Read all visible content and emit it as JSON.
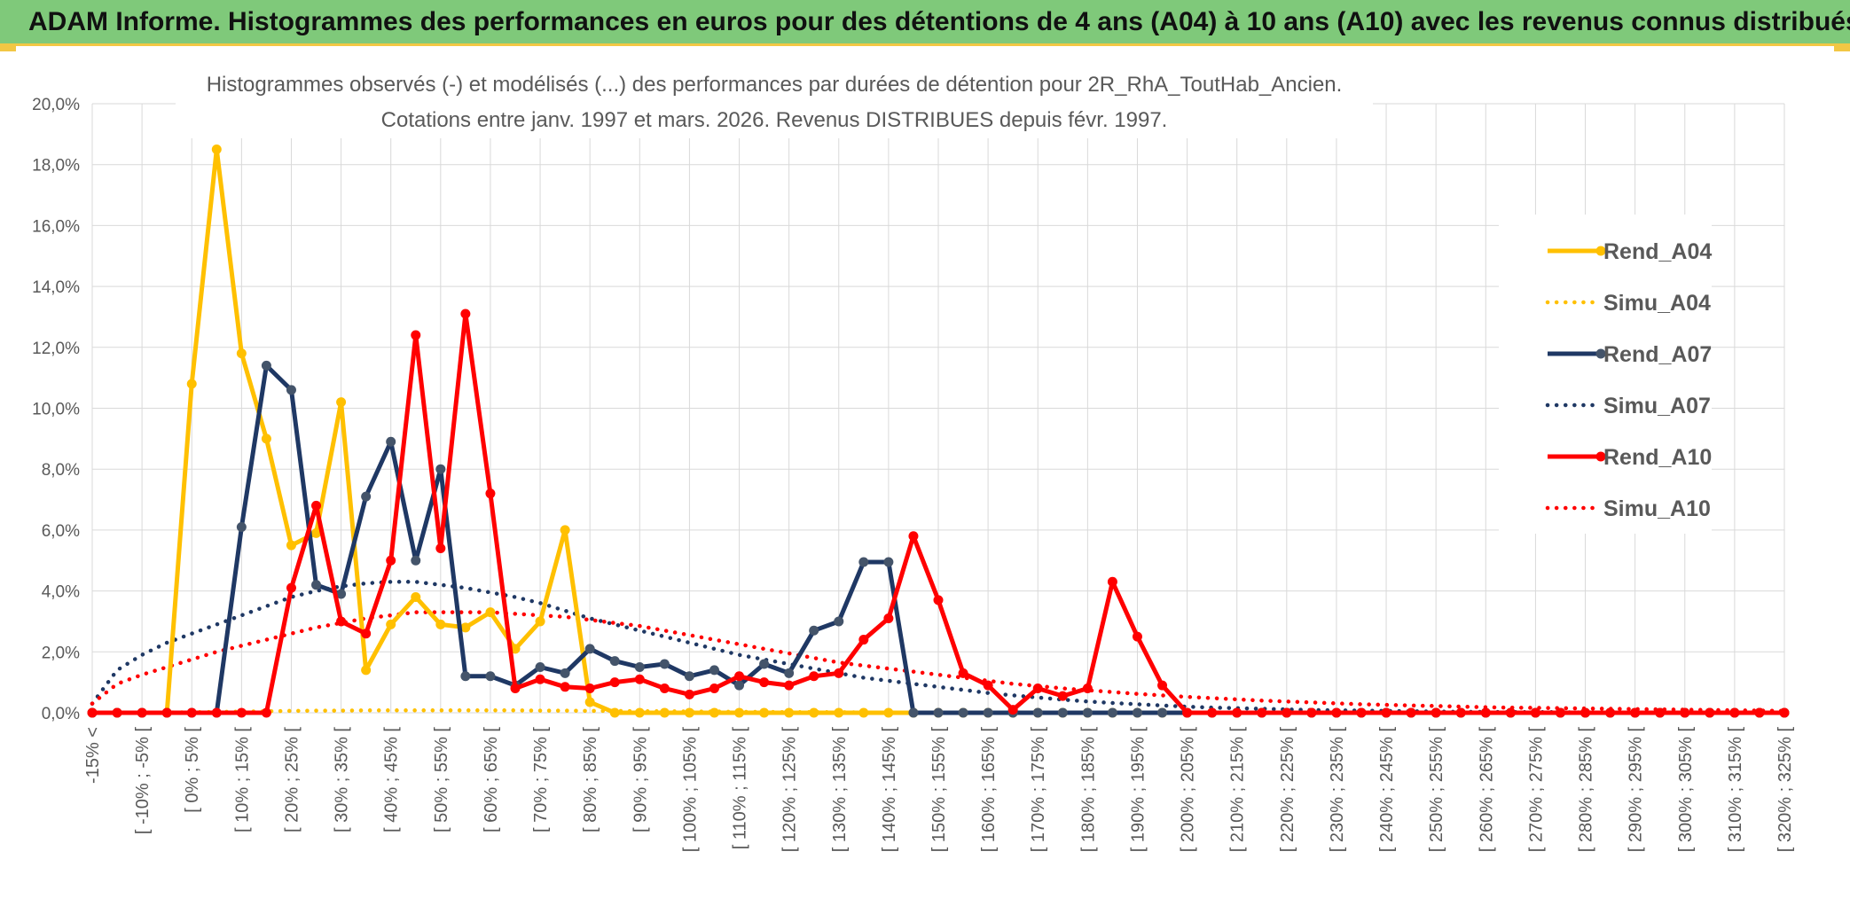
{
  "banner": {
    "title": "ADAM Informe. Histogrammes des performances en euros pour des détentions de 4 ans (A04) à 10 ans (A10) avec les revenus connus distribués"
  },
  "colors": {
    "banner_bg": "#7fc97a",
    "A04": "#ffc000",
    "A07": "#1f3864",
    "A07_marker": "#44546a",
    "A10": "#ff0000",
    "grid": "#d9d9d9",
    "axis_text": "#595959"
  },
  "chart_data": {
    "type": "line",
    "title_line1": "Histogrammes observés (-) et modélisés (...) des performances par durées de détention pour 2R_RhA_ToutHab_Ancien.",
    "title_line2": "Cotations entre janv. 1997 et mars. 2026. Revenus DISTRIBUES depuis févr. 1997.",
    "ylim": [
      0,
      20
    ],
    "yticks": [
      "0,0%",
      "2,0%",
      "4,0%",
      "6,0%",
      "8,0%",
      "10,0%",
      "12,0%",
      "14,0%",
      "16,0%",
      "18,0%",
      "20,0%"
    ],
    "major_categories": [
      "-15% <",
      "[ -10% ; -5% [",
      "[ 0% ; 5% [",
      "[ 10% ; 15% [",
      "[ 20% ; 25% [",
      "[ 30% ; 35% [",
      "[ 40% ; 45% [",
      "[ 50% ; 55% [",
      "[ 60% ; 65% [",
      "[ 70% ; 75% [",
      "[ 80% ; 85% [",
      "[ 90% ; 95% [",
      "[ 100% ; 105% [",
      "[ 110% ; 115% [",
      "[ 120% ; 125% [",
      "[ 130% ; 135% [",
      "[ 140% ; 145% [",
      "[ 150% ; 155% [",
      "[ 160% ; 165% [",
      "[ 170% ; 175% [",
      "[ 180% ; 185% [",
      "[ 190% ; 195% [",
      "[ 200% ; 205% [",
      "[ 210% ; 215% [",
      "[ 220% ; 225% [",
      "[ 230% ; 235% [",
      "[ 240% ; 245% [",
      "[ 250% ; 255% [",
      "[ 260% ; 265% [",
      "[ 270% ; 275% [",
      "[ 280% ; 285% [",
      "[ 290% ; 295% [",
      "[ 300% ; 305% [",
      "[ 310% ; 315% [",
      "[ 320% ; 325% ["
    ],
    "legend": [
      "Rend_A04",
      "Simu_A04",
      "Rend_A07",
      "Simu_A07",
      "Rend_A10",
      "Simu_A10"
    ],
    "legend_position": "right",
    "series": [
      {
        "name": "Rend_A04",
        "style": "solid",
        "values": [
          0,
          0,
          0,
          0,
          10.8,
          18.5,
          11.8,
          9.0,
          5.5,
          5.9,
          10.2,
          1.4,
          2.9,
          3.8,
          2.9,
          2.8,
          3.3,
          2.1,
          3.0,
          6.0,
          0.35,
          0,
          0,
          0,
          0,
          0,
          0,
          0,
          0,
          0,
          0,
          0,
          0,
          0
        ]
      },
      {
        "name": "Rend_A07",
        "style": "solid",
        "values": [
          0,
          0,
          0,
          0,
          0,
          0,
          6.1,
          11.4,
          10.6,
          4.2,
          3.9,
          7.1,
          8.9,
          5.0,
          8.0,
          1.2,
          1.2,
          0.9,
          1.5,
          1.3,
          2.1,
          1.7,
          1.5,
          1.6,
          1.2,
          1.4,
          0.9,
          1.6,
          1.3,
          2.7,
          3.0,
          4.95,
          4.95,
          0,
          0,
          0,
          0,
          0,
          0,
          0,
          0,
          0,
          0,
          0,
          0,
          0,
          0,
          0,
          0,
          0,
          0,
          0,
          0,
          0,
          0,
          0,
          0,
          0,
          0,
          0,
          0,
          0,
          0,
          0,
          0,
          0,
          0,
          0,
          0,
          0
        ]
      },
      {
        "name": "Rend_A10",
        "style": "solid",
        "values": [
          0,
          0,
          0,
          0,
          0,
          0,
          0,
          0,
          4.1,
          6.8,
          3.0,
          2.6,
          5.0,
          12.4,
          5.4,
          13.1,
          7.2,
          0.8,
          1.1,
          0.85,
          0.8,
          1.0,
          1.1,
          0.8,
          0.6,
          0.8,
          1.2,
          1.0,
          0.9,
          1.2,
          1.3,
          2.4,
          3.1,
          5.8,
          3.7,
          1.3,
          0.9,
          0.1,
          0.8,
          0.55,
          0.8,
          4.3,
          2.5,
          0.9,
          0,
          0,
          0,
          0,
          0,
          0,
          0,
          0,
          0,
          0,
          0,
          0,
          0,
          0,
          0,
          0,
          0,
          0,
          0,
          0,
          0,
          0,
          0,
          0,
          0,
          0
        ]
      },
      {
        "name": "Simu_A04",
        "style": "dotted",
        "values": [
          0,
          0,
          0,
          0.01,
          0.02,
          0.03,
          0.04,
          0.05,
          0.06,
          0.07,
          0.07,
          0.08,
          0.08,
          0.08,
          0.08,
          0.08,
          0.08,
          0.08,
          0.07,
          0.07,
          0.06,
          0.06,
          0.05,
          0.05,
          0.04,
          0.04,
          0.03,
          0.03,
          0.02,
          0.02,
          0.02,
          0.01,
          0.01,
          0.01
        ]
      },
      {
        "name": "Simu_A07",
        "style": "dotted",
        "values": [
          0.3,
          1.4,
          1.9,
          2.3,
          2.6,
          2.9,
          3.2,
          3.5,
          3.8,
          4.0,
          4.15,
          4.25,
          4.3,
          4.3,
          4.2,
          4.1,
          3.95,
          3.8,
          3.6,
          3.35,
          3.1,
          2.9,
          2.7,
          2.5,
          2.3,
          2.1,
          1.9,
          1.75,
          1.6,
          1.45,
          1.3,
          1.15,
          1.05,
          0.95,
          0.85,
          0.75,
          0.65,
          0.57,
          0.5,
          0.43,
          0.37,
          0.32,
          0.28,
          0.24,
          0.2,
          0.17,
          0.15,
          0.13,
          0.11,
          0.09,
          0.08,
          0.07,
          0.06,
          0.05,
          0.04,
          0.03,
          0.03,
          0.02,
          0.02,
          0.02,
          0.01,
          0.01,
          0.01,
          0.01,
          0.01,
          0.01,
          0,
          0,
          0,
          0
        ]
      },
      {
        "name": "Simu_A10",
        "style": "dotted",
        "values": [
          0.3,
          0.95,
          1.25,
          1.5,
          1.75,
          2.0,
          2.2,
          2.4,
          2.6,
          2.8,
          2.95,
          3.1,
          3.2,
          3.3,
          3.3,
          3.3,
          3.3,
          3.25,
          3.2,
          3.15,
          3.05,
          2.95,
          2.85,
          2.7,
          2.55,
          2.4,
          2.25,
          2.1,
          1.95,
          1.8,
          1.65,
          1.55,
          1.45,
          1.35,
          1.25,
          1.15,
          1.05,
          0.95,
          0.88,
          0.8,
          0.74,
          0.68,
          0.62,
          0.57,
          0.52,
          0.48,
          0.44,
          0.4,
          0.37,
          0.34,
          0.31,
          0.28,
          0.26,
          0.24,
          0.22,
          0.2,
          0.18,
          0.17,
          0.16,
          0.15,
          0.14,
          0.13,
          0.12,
          0.11,
          0.1,
          0.09,
          0.08,
          0.07,
          0.06,
          0.05
        ]
      }
    ]
  }
}
